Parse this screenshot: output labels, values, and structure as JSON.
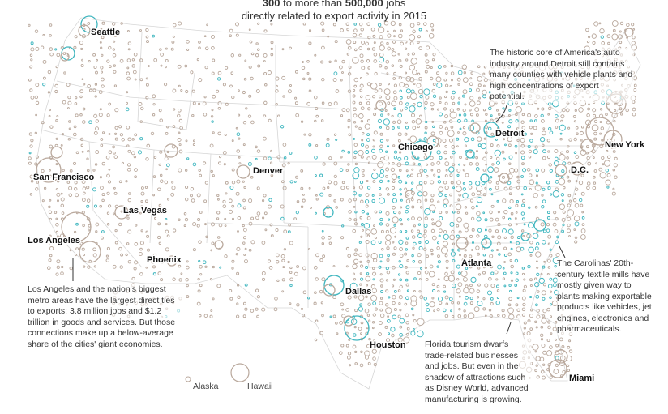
{
  "heading": {
    "line1_num1": "300",
    "line1_mid": "to more than",
    "line1_num2": "500,000",
    "line1_end": "jobs",
    "line2": "directly related to export activity in 2015"
  },
  "colors": {
    "brown": "#b9a89c",
    "teal": "#3fb6bf",
    "borders": "#cfcfcf",
    "text": "#222222"
  },
  "cities": [
    "Seattle",
    "San Francisco",
    "Las Vegas",
    "Los Angeles",
    "Phoenix",
    "Denver",
    "Dallas",
    "Houston",
    "Chicago",
    "Detroit",
    "Atlanta",
    "New York",
    "D.C.",
    "Miami"
  ],
  "annotations": {
    "detroit": "The historic core of America's auto industry around Detroit still contains many counties with vehicle plants and high concentrations of export potential.",
    "los_angeles": "Los Angeles and the nation's biggest metro areas have the largest direct ties to exports: 3.8 million jobs and $1.2 trillion in goods and services. But those connections make up a below-average share of the cities' giant economies.",
    "carolinas": "The Carolinas' 20th-century textile mills have mostly given way to plants making exportable products like vehicles, jet engines, electronics and pharmaceuticals.",
    "florida": "Florida tourism dwarfs trade-related businesses and jobs. But even in the shadow of attractions such as Disney World, advanced manufacturing is growing."
  },
  "insets": {
    "alaska": "Alaska",
    "hawaii": "Hawaii"
  }
}
